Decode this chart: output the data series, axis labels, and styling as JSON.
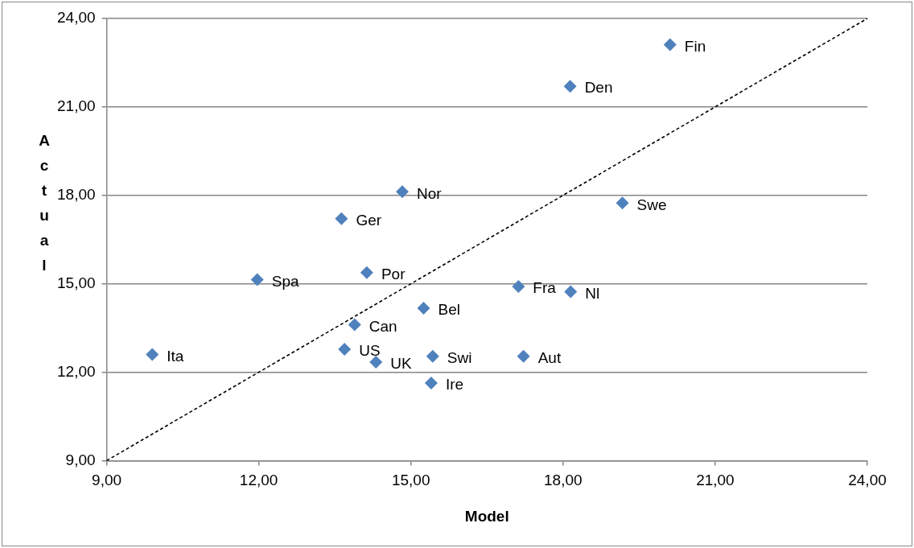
{
  "chart_data": {
    "type": "scatter",
    "xlabel": "Model",
    "ylabel": "Actual",
    "xlim": [
      9,
      24
    ],
    "ylim": [
      9,
      24
    ],
    "xticks": [
      {
        "value": 9,
        "label": "9,00"
      },
      {
        "value": 12,
        "label": "12,00"
      },
      {
        "value": 15,
        "label": "15,00"
      },
      {
        "value": 18,
        "label": "18,00"
      },
      {
        "value": 21,
        "label": "21,00"
      },
      {
        "value": 24,
        "label": "24,00"
      }
    ],
    "yticks": [
      {
        "value": 9,
        "label": "9,00"
      },
      {
        "value": 12,
        "label": "12,00"
      },
      {
        "value": 15,
        "label": "15,00"
      },
      {
        "value": 18,
        "label": "18,00"
      },
      {
        "value": 21,
        "label": "21,00"
      },
      {
        "value": 24,
        "label": "24,00"
      }
    ],
    "grid": "y",
    "legend": false,
    "marker": "diamond",
    "series": [
      {
        "type": "scatter",
        "color": "#4f81bd",
        "x": [
          20.11,
          18.14,
          14.83,
          19.17,
          13.63,
          14.13,
          11.97,
          17.12,
          18.15,
          15.25,
          13.89,
          13.69,
          9.9,
          15.43,
          17.22,
          14.31,
          15.4
        ],
        "values": [
          23.11,
          21.7,
          18.12,
          17.74,
          17.21,
          15.38,
          15.14,
          14.91,
          14.73,
          14.17,
          13.61,
          12.78,
          12.6,
          12.54,
          12.54,
          12.34,
          11.63
        ]
      },
      {
        "type": "line",
        "color": "#000000",
        "line_style": "dashed",
        "marker": "none",
        "x": [
          9,
          24
        ],
        "values": [
          9,
          24
        ]
      }
    ],
    "annotations": [
      {
        "text": "Fin",
        "x": 20.11,
        "y": 23.11
      },
      {
        "text": "Den",
        "x": 18.14,
        "y": 21.7
      },
      {
        "text": "Nor",
        "x": 14.83,
        "y": 18.12
      },
      {
        "text": "Swe",
        "x": 19.17,
        "y": 17.74
      },
      {
        "text": "Ger",
        "x": 13.63,
        "y": 17.21
      },
      {
        "text": "Por",
        "x": 14.13,
        "y": 15.38
      },
      {
        "text": "Spa",
        "x": 11.97,
        "y": 15.14
      },
      {
        "text": "Fra",
        "x": 17.12,
        "y": 14.91
      },
      {
        "text": "Nl",
        "x": 18.15,
        "y": 14.73
      },
      {
        "text": "Bel",
        "x": 15.25,
        "y": 14.17
      },
      {
        "text": "Can",
        "x": 13.89,
        "y": 13.61
      },
      {
        "text": "US",
        "x": 13.69,
        "y": 12.78
      },
      {
        "text": "Ita",
        "x": 9.9,
        "y": 12.6
      },
      {
        "text": "Swi",
        "x": 15.43,
        "y": 12.54
      },
      {
        "text": "Aut",
        "x": 17.22,
        "y": 12.54
      },
      {
        "text": "UK",
        "x": 14.31,
        "y": 12.34
      },
      {
        "text": "Ire",
        "x": 15.4,
        "y": 11.63
      }
    ]
  }
}
